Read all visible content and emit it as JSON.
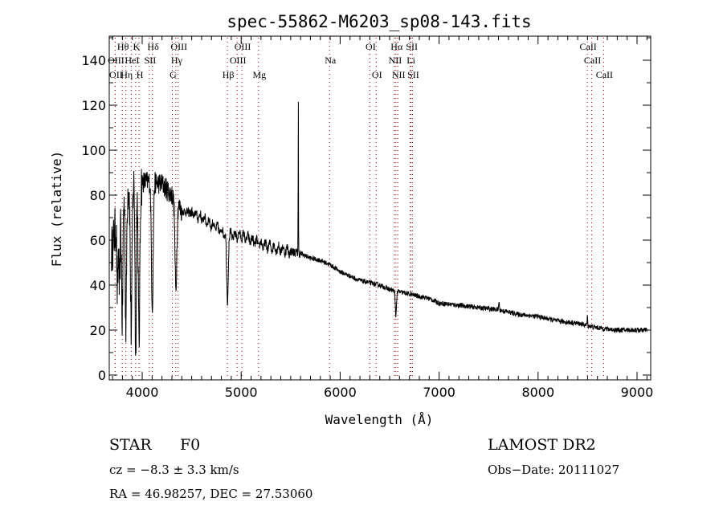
{
  "chart_data": {
    "type": "line",
    "title": "spec-55862-M6203_sp08-143.fits",
    "xlabel": "Wavelength (Å)",
    "ylabel": "Flux (relative)",
    "xlim": [
      3667,
      9138
    ],
    "ylim": [
      0,
      150
    ],
    "xticks": [
      4000,
      5000,
      6000,
      7000,
      8000,
      9000
    ],
    "yticks": [
      0,
      20,
      40,
      60,
      80,
      100,
      120,
      140
    ],
    "grid": false,
    "line_color": "#000000",
    "marker_color": "#8b0000",
    "continuum": {
      "x": [
        3690,
        3750,
        3800,
        3900,
        4000,
        4100,
        4200,
        4300,
        4400,
        4500,
        4600,
        4700,
        4800,
        4900,
        5000,
        5100,
        5200,
        5300,
        5400,
        5500,
        5600,
        5700,
        5800,
        5900,
        6000,
        6100,
        6200,
        6300,
        6400,
        6500,
        6600,
        6700,
        6800,
        6900,
        7000,
        7200,
        7400,
        7600,
        7800,
        8000,
        8200,
        8400,
        8600,
        8800,
        9000,
        9100
      ],
      "y": [
        55,
        70,
        80,
        85,
        86,
        86,
        85,
        80,
        73,
        72,
        70,
        67,
        64,
        62,
        62,
        60,
        58,
        57,
        56,
        55,
        54,
        52,
        51,
        49,
        46,
        44,
        42,
        41,
        40,
        38,
        37,
        36,
        35,
        34,
        32,
        31,
        30,
        29,
        27,
        26,
        24,
        23,
        21,
        20,
        20,
        20
      ]
    },
    "features": [
      {
        "x": 3750,
        "depth": 35,
        "width": 6
      },
      {
        "x": 3771,
        "depth": 40,
        "width": 6
      },
      {
        "x": 3798,
        "depth": 55,
        "width": 7
      },
      {
        "x": 3835,
        "depth": 60,
        "width": 7
      },
      {
        "x": 3889,
        "depth": 65,
        "width": 8
      },
      {
        "x": 3934,
        "depth": 78,
        "width": 6
      },
      {
        "x": 3968,
        "depth": 72,
        "width": 8
      },
      {
        "x": 4102,
        "depth": 55,
        "width": 9
      },
      {
        "x": 4340,
        "depth": 40,
        "width": 9
      },
      {
        "x": 4861,
        "depth": 30,
        "width": 8
      },
      {
        "x": 5577,
        "depth": -70,
        "width": 1.5
      },
      {
        "x": 6563,
        "depth": 11,
        "width": 6
      },
      {
        "x": 7605,
        "depth": -4,
        "width": 3
      },
      {
        "x": 8498,
        "depth": -4,
        "width": 3
      }
    ],
    "line_markers": [
      {
        "label": "Hθ",
        "x": 3798,
        "row": 1
      },
      {
        "label": "K",
        "x": 3934,
        "row": 1
      },
      {
        "label": "Hδ",
        "x": 4102,
        "row": 1
      },
      {
        "label": "OIII",
        "x": 4363,
        "row": 1
      },
      {
        "label": "OIII",
        "x": 5007,
        "row": 1
      },
      {
        "label": "OI",
        "x": 6300,
        "row": 1
      },
      {
        "label": "Hα",
        "x": 6563,
        "row": 1
      },
      {
        "label": "SII",
        "x": 6716,
        "row": 1
      },
      {
        "label": "CaII",
        "x": 8498,
        "row": 1
      },
      {
        "label": "OIII",
        "x": 3727,
        "row": 2
      },
      {
        "label": "HeI",
        "x": 3889,
        "row": 2
      },
      {
        "label": "SII",
        "x": 4072,
        "row": 2
      },
      {
        "label": "Hγ",
        "x": 4340,
        "row": 2
      },
      {
        "label": "OIII",
        "x": 4959,
        "row": 2
      },
      {
        "label": "Na",
        "x": 5893,
        "row": 2
      },
      {
        "label": "NII",
        "x": 6548,
        "row": 2
      },
      {
        "label": "Li",
        "x": 6708,
        "row": 2
      },
      {
        "label": "CaII",
        "x": 8542,
        "row": 2
      },
      {
        "label": "OII",
        "x": 3727,
        "row": 3
      },
      {
        "label": "Hη",
        "x": 3835,
        "row": 3
      },
      {
        "label": "H",
        "x": 3968,
        "row": 3
      },
      {
        "label": "G",
        "x": 4304,
        "row": 3
      },
      {
        "label": "Hβ",
        "x": 4861,
        "row": 3
      },
      {
        "label": "Mg",
        "x": 5175,
        "row": 3
      },
      {
        "label": "OI",
        "x": 6364,
        "row": 3
      },
      {
        "label": "NII",
        "x": 6583,
        "row": 3
      },
      {
        "label": "SII",
        "x": 6731,
        "row": 3
      },
      {
        "label": "CaII",
        "x": 8662,
        "row": 3
      }
    ]
  },
  "info": {
    "class": "STAR",
    "subclass": "F0",
    "survey": "LAMOST DR2",
    "redshift": "cz = −8.3 ± 3.3 km/s",
    "obs_date": "Obs−Date: 20111027",
    "coords": "RA =  46.98257, DEC =  27.53060"
  }
}
